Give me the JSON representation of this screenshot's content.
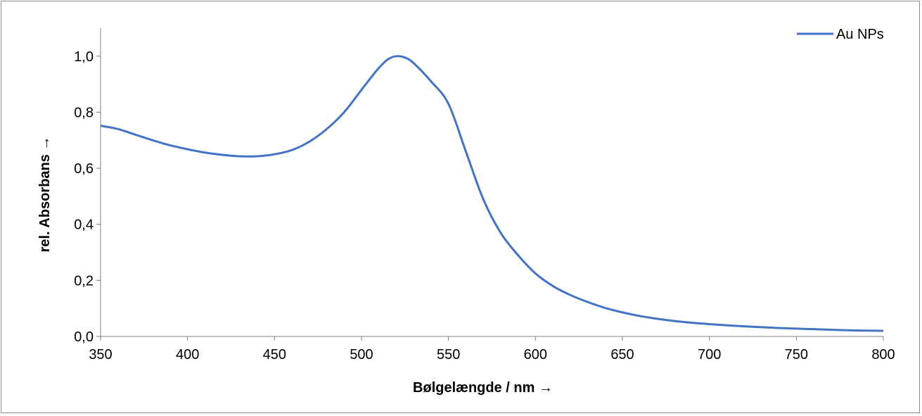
{
  "chart_data": {
    "type": "line",
    "xlabel": "Bølgelængde / nm →",
    "ylabel": "rel. Absorbans →",
    "xlim": [
      350,
      800
    ],
    "ylim": [
      0.0,
      1.1
    ],
    "x_ticks": [
      350,
      400,
      450,
      500,
      550,
      600,
      650,
      700,
      750,
      800
    ],
    "x_tick_labels": [
      "350",
      "400",
      "450",
      "500",
      "550",
      "600",
      "650",
      "700",
      "750",
      "800"
    ],
    "y_ticks": [
      0.0,
      0.2,
      0.4,
      0.6,
      0.8,
      1.0
    ],
    "y_tick_labels": [
      "0,0",
      "0,2",
      "0,4",
      "0,6",
      "0,8",
      "1,0"
    ],
    "grid": false,
    "legend_position": "top-right",
    "colors": {
      "series": "#4472c4",
      "axis": "#808080"
    },
    "series": [
      {
        "name": "Au NPs",
        "x": [
          350,
          360,
          370,
          380,
          390,
          400,
          410,
          420,
          430,
          440,
          450,
          460,
          470,
          480,
          490,
          500,
          505,
          510,
          515,
          520,
          525,
          530,
          540,
          550,
          560,
          570,
          580,
          590,
          600,
          610,
          620,
          630,
          640,
          650,
          660,
          670,
          680,
          690,
          700,
          720,
          740,
          760,
          780,
          800
        ],
        "y": [
          0.752,
          0.74,
          0.72,
          0.7,
          0.682,
          0.668,
          0.656,
          0.648,
          0.643,
          0.643,
          0.65,
          0.665,
          0.695,
          0.74,
          0.8,
          0.88,
          0.92,
          0.958,
          0.988,
          1.0,
          0.995,
          0.975,
          0.91,
          0.83,
          0.66,
          0.49,
          0.37,
          0.29,
          0.225,
          0.18,
          0.148,
          0.123,
          0.102,
          0.086,
          0.073,
          0.063,
          0.055,
          0.049,
          0.044,
          0.036,
          0.03,
          0.026,
          0.022,
          0.02
        ]
      }
    ]
  }
}
